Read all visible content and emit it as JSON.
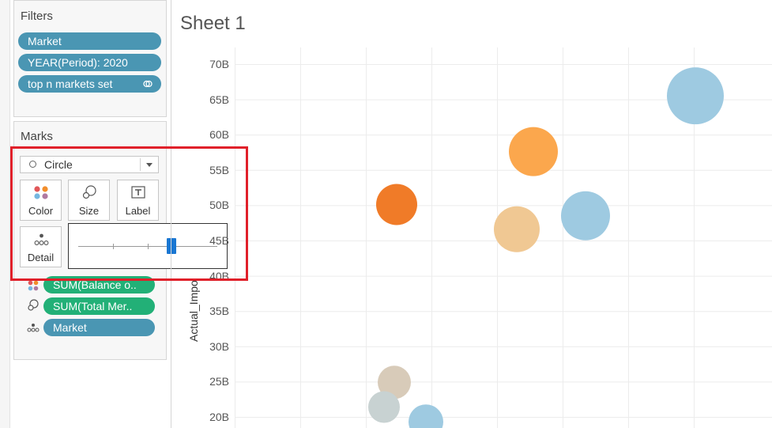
{
  "filters": {
    "title": "Filters",
    "pills": [
      {
        "label": "Market"
      },
      {
        "label": "YEAR(Period): 2020"
      },
      {
        "label": "top n markets set"
      }
    ]
  },
  "marks": {
    "title": "Marks",
    "mark_type": "Circle",
    "buttons": {
      "color": "Color",
      "size": "Size",
      "label": "Label",
      "detail": "Detail"
    },
    "fields": [
      {
        "label": "SUM(Balance o..",
        "role": "color",
        "color": "#22b077"
      },
      {
        "label": "SUM(Total Mer..",
        "role": "size",
        "color": "#22b077"
      },
      {
        "label": "Market",
        "role": "detail",
        "color": "#4a96b3"
      }
    ],
    "size_slider_value": 0.67
  },
  "sheet": {
    "title": "Sheet 1"
  },
  "chart_data": {
    "type": "scatter",
    "ylabel": "Actual_Impo",
    "y_ticks": [
      "20B",
      "25B",
      "30B",
      "35B",
      "40B",
      "45B",
      "50B",
      "55B",
      "60B",
      "65B",
      "70B"
    ],
    "ylim": [
      19.5,
      72
    ],
    "grid": true,
    "points": [
      {
        "x": 1,
        "y": 50.1,
        "r": 26,
        "color": "#f07b28"
      },
      {
        "x": 2,
        "y": 57.6,
        "r": 31,
        "color": "#fba74d"
      },
      {
        "x": 3,
        "y": 46.6,
        "r": 29,
        "color": "#f0c893"
      },
      {
        "x": 4,
        "y": 48.5,
        "r": 31,
        "color": "#9ecae1"
      },
      {
        "x": 5,
        "y": 65.5,
        "r": 36,
        "color": "#9ecae1"
      },
      {
        "x": 6,
        "y": 24.9,
        "r": 21,
        "color": "#d8cbb9"
      },
      {
        "x": 7,
        "y": 21.4,
        "r": 20,
        "color": "#c8d2d2"
      },
      {
        "x": 8,
        "y": 19.3,
        "r": 22,
        "color": "#9ecae1"
      }
    ]
  }
}
